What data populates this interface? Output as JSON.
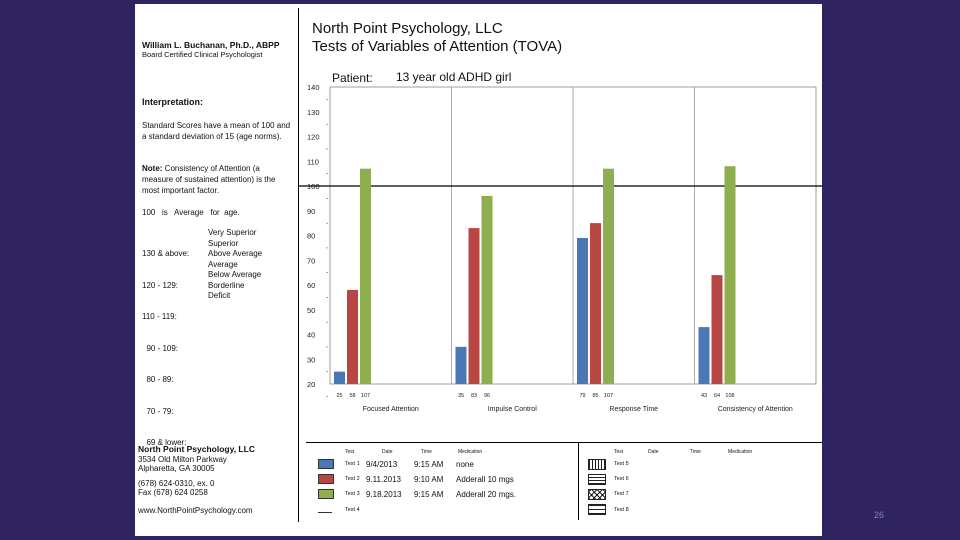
{
  "header": {
    "doctor_name": "William L. Buchanan, Ph.D., ABPP",
    "doctor_credential": "Board Certified Clinical Psychologist",
    "practice_title": "North Point Psychology, LLC",
    "report_title": "Tests of Variables of Attention (TOVA)",
    "patient_label": "Patient:",
    "patient_value": "13 year old ADHD girl"
  },
  "interpretation": {
    "heading": "Interpretation:",
    "para1": "Standard Scores have a mean of 100 and a standard deviation of 15 (age norms).",
    "note_bold": "Note:",
    "note_text": " Consistency of Attention (a measure of sustained attention) is the most important factor.",
    "average_line": "100   is   Average   for  age.",
    "scale": [
      {
        "range": "130 & above:",
        "label": "Very Superior"
      },
      {
        "range": "120 - 129:",
        "label": "Superior"
      },
      {
        "range": "110 - 119:",
        "label": "Above Average"
      },
      {
        "range": "  90 - 109:",
        "label": "Average"
      },
      {
        "range": "  80 - 89:",
        "label": "Below Average"
      },
      {
        "range": "  70 - 79:",
        "label": "Borderline"
      },
      {
        "range": "  69 & lower:",
        "label": "Deficit"
      }
    ]
  },
  "footer": {
    "name": "North Point Psychology, LLC",
    "address1": "3534 Old Milton Parkway",
    "address2": "Alpharetta, GA 30005",
    "phone": "(678) 624-0310, ex. 0",
    "fax": "Fax (678) 624 0258",
    "web": "www.NorthPointPsychology.com"
  },
  "legend": {
    "headers_left": [
      "Test",
      "Date",
      "Time",
      "Medication"
    ],
    "headers_right": [
      "Test",
      "Date",
      "Time",
      "Medication"
    ],
    "rows_left": [
      {
        "test": "Test 1",
        "date": "9/4/2013",
        "time": "9:15 AM",
        "med": "none",
        "color": "#4a78b5"
      },
      {
        "test": "Test 2",
        "date": "9.11.2013",
        "time": "9:10 AM",
        "med": "Adderall 10 mgs",
        "color": "#b84743"
      },
      {
        "test": "Test 3",
        "date": "9.18.2013",
        "time": "9:15 AM",
        "med": "Adderall 20 mgs.",
        "color": "#8faf4e"
      },
      {
        "test": "Test 4",
        "date": "",
        "time": "",
        "med": "",
        "color": "#ffffff"
      }
    ],
    "rows_right": [
      "Test 5",
      "Test 6",
      "Test 7",
      "Test 8"
    ]
  },
  "page_number": "26",
  "chart_data": {
    "type": "bar",
    "title": "Tests of Variables of Attention (TOVA)",
    "categories": [
      "Focused Attention",
      "Impulse Control",
      "Response Time",
      "Consistency of Attention"
    ],
    "series": [
      {
        "name": "Test 1",
        "color": "#4a78b5",
        "values": [
          25,
          35,
          79,
          43
        ]
      },
      {
        "name": "Test 2",
        "color": "#b84743",
        "values": [
          58,
          83,
          85,
          64
        ]
      },
      {
        "name": "Test 3",
        "color": "#8faf4e",
        "values": [
          107,
          96,
          107,
          108
        ]
      }
    ],
    "value_labels": [
      [
        "25",
        "58",
        "107"
      ],
      [
        "35",
        "83",
        "96"
      ],
      [
        "79",
        "85",
        "107"
      ],
      [
        "43",
        "64",
        "108"
      ]
    ],
    "yticks": [
      20,
      30,
      40,
      50,
      60,
      70,
      80,
      90,
      100,
      110,
      120,
      130,
      140
    ],
    "ylim": [
      20,
      140
    ],
    "reference_line": 100,
    "xlabel": "",
    "ylabel": ""
  }
}
